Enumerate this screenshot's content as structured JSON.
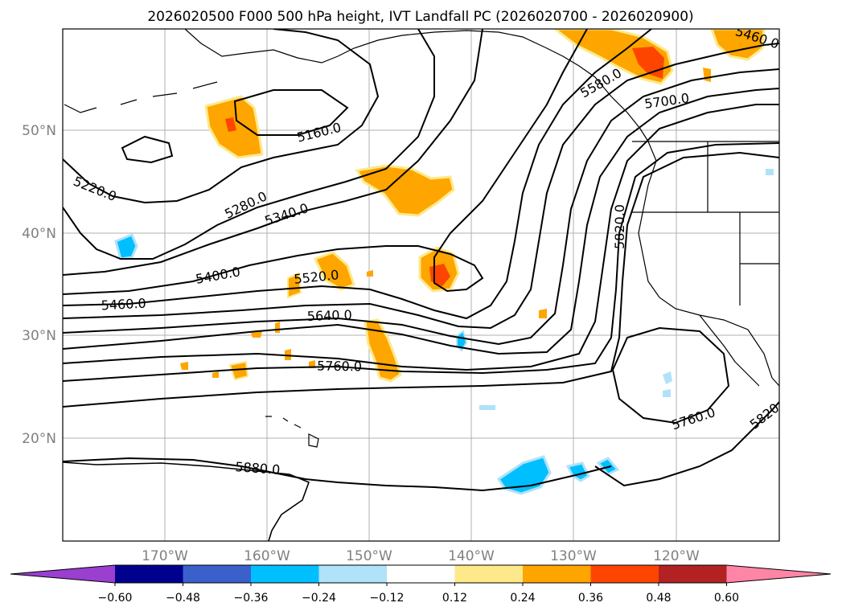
{
  "title": "2026020500 F000 500 hPa height, IVT Landfall PC (2026020700 - 2026020900)",
  "map": {
    "lat_ticks": [
      "50°N",
      "40°N",
      "30°N",
      "20°N"
    ],
    "lon_ticks": [
      "170°W",
      "160°W",
      "150°W",
      "140°W",
      "130°W",
      "120°W"
    ],
    "contour_labels": [
      "5160.0",
      "5220.0",
      "5280.0",
      "5340.0",
      "5400.0",
      "5460.0",
      "5520.0",
      "5640.0",
      "5760.0",
      "5580.0",
      "5700.0",
      "5820.0",
      "5760.0",
      "5820",
      "5880.0",
      "5460.0"
    ]
  },
  "colorbar": {
    "ticks": [
      "−0.60",
      "−0.48",
      "−0.36",
      "−0.24",
      "−0.12",
      "0.12",
      "0.24",
      "0.36",
      "0.48",
      "0.60"
    ],
    "colors": [
      "#9a3fd0",
      "#00008f",
      "#3a60cc",
      "#00bfff",
      "#b0e2f8",
      "#ffffff",
      "#fde98a",
      "#fea500",
      "#fe4500",
      "#b22222",
      "#ff85a6"
    ]
  }
}
